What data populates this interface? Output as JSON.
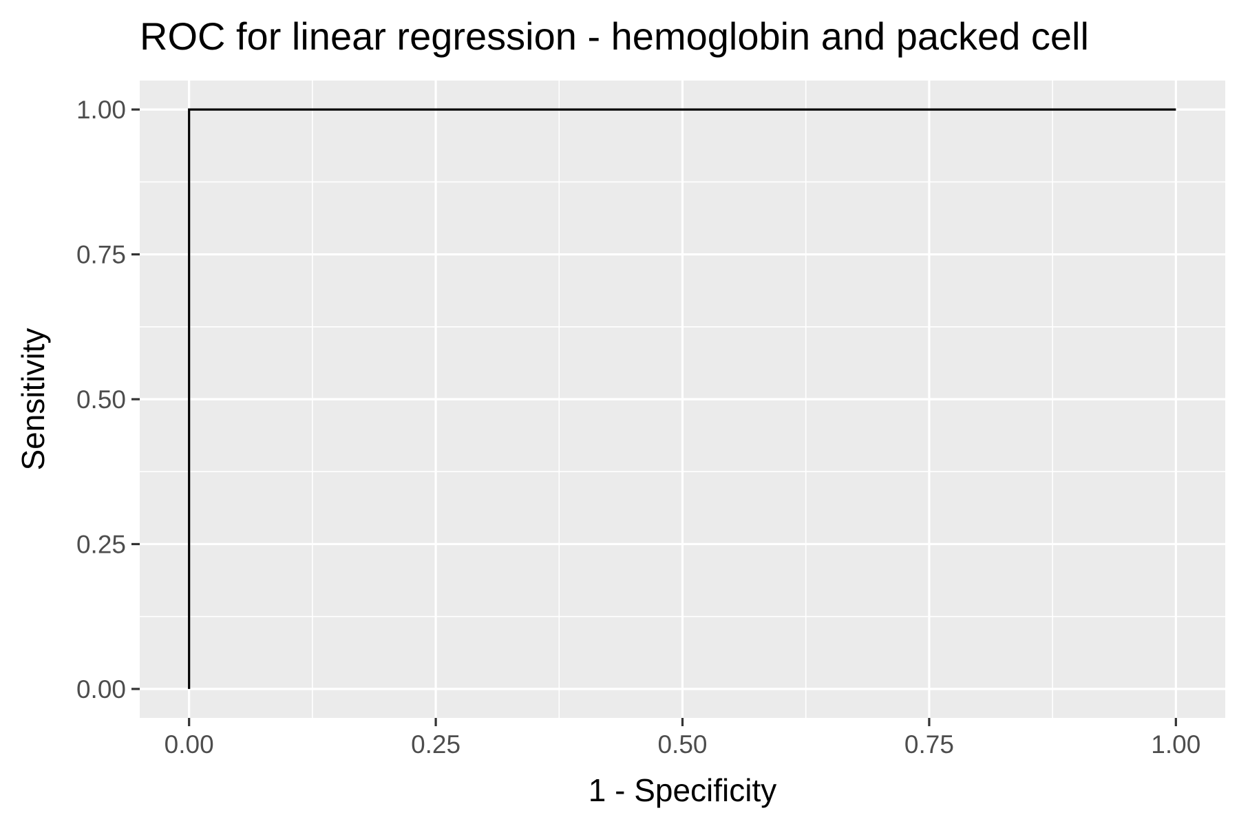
{
  "chart_data": {
    "type": "line",
    "title": "ROC for linear regression - hemoglobin and packed cell",
    "xlabel": "1 - Specificity",
    "ylabel": "Sensitivity",
    "xlim": [
      -0.05,
      1.05
    ],
    "ylim": [
      -0.05,
      1.05
    ],
    "x_ticks": [
      0,
      0.25,
      0.5,
      0.75,
      1
    ],
    "y_ticks": [
      0,
      0.25,
      0.5,
      0.75,
      1
    ],
    "x_tick_labels": [
      "0.00",
      "0.25",
      "0.50",
      "0.75",
      "1.00"
    ],
    "y_tick_labels": [
      "0.00",
      "0.25",
      "0.50",
      "0.75",
      "1.00"
    ],
    "grid": true,
    "legend": "none",
    "series": [
      {
        "color": "#000000",
        "x": [
          0,
          0,
          1
        ],
        "y": [
          0,
          1,
          1
        ]
      }
    ],
    "colors": {
      "panel_background": "#ebebeb",
      "grid_major": "#ffffff",
      "grid_minor": "#ffffff",
      "tick_label": "#4d4d4d",
      "tick_mark": "#333333",
      "text": "#000000"
    }
  }
}
